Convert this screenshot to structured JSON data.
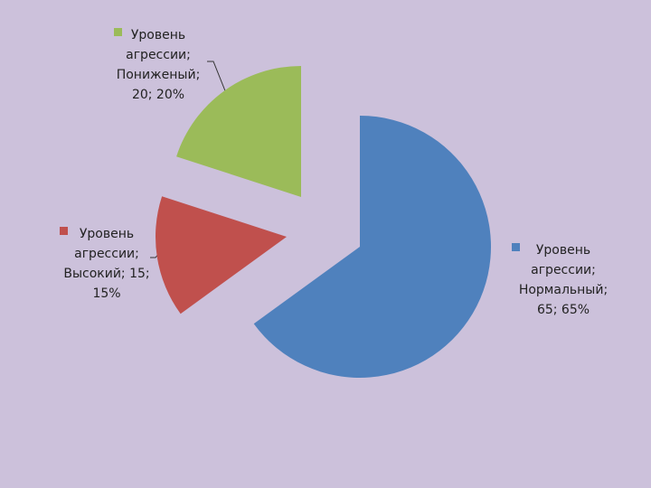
{
  "chart_data": {
    "type": "pie",
    "values": [
      65,
      15,
      20
    ],
    "value_labels": [
      "Уровень агрессии; Нормальный; 65; 65%",
      "Уровень агрессии; Высокий; 15; 15%",
      "Уровень агрессии; Пониженый; 20; 20%"
    ],
    "colors": [
      "#4f81bd",
      "#c0504d",
      "#9bbb59"
    ]
  }
}
